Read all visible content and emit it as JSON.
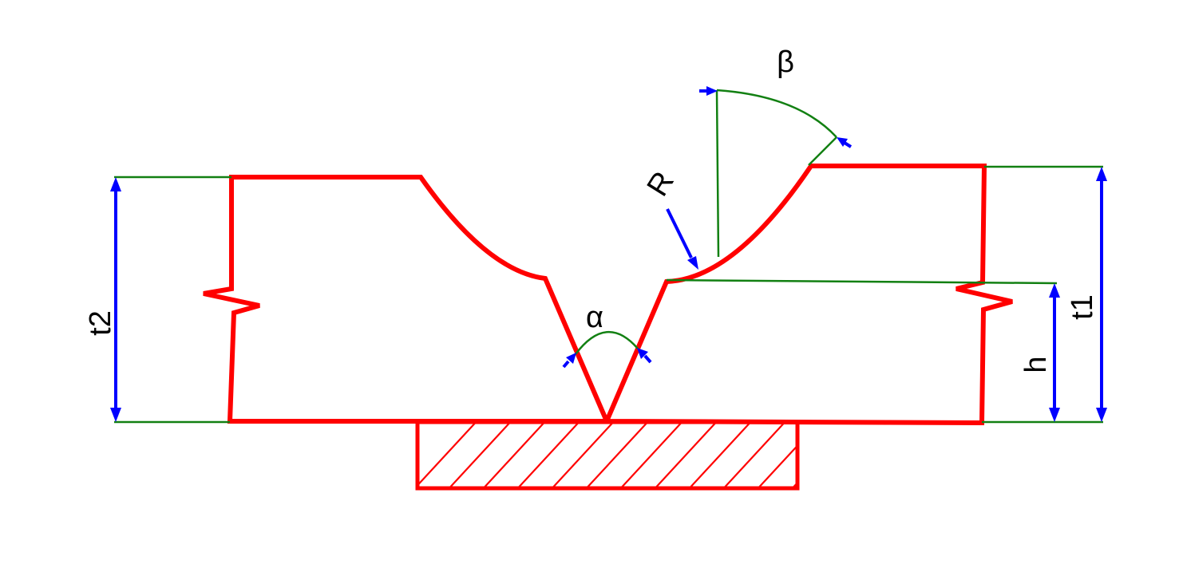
{
  "labels": {
    "t2": "t2",
    "t1": "t1",
    "h": "h",
    "alpha": "α",
    "beta": "β",
    "R": "R"
  },
  "colors": {
    "plate": "#ff0000",
    "extension_lines": "#128012",
    "dimension_arrows": "#0000ff"
  }
}
